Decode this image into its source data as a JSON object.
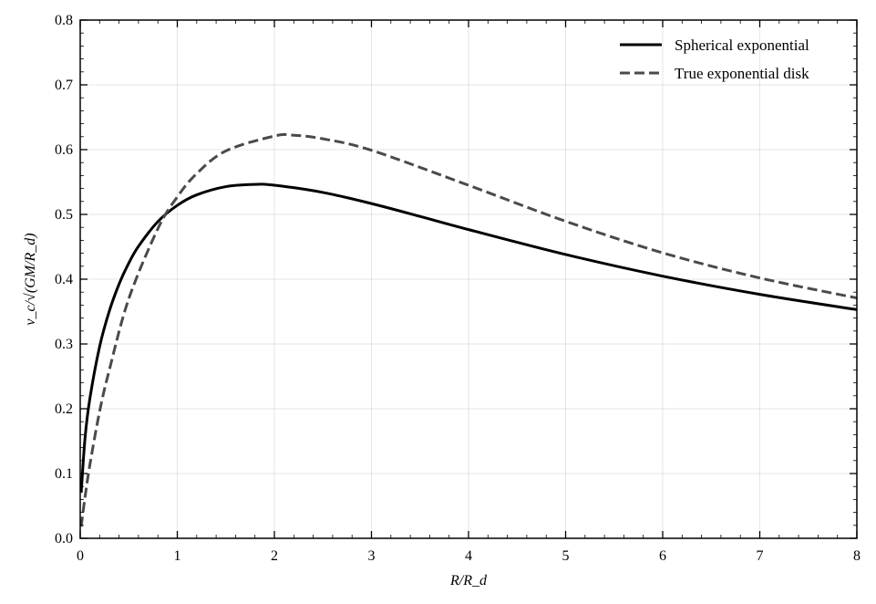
{
  "chart_data": {
    "type": "line",
    "title": "",
    "xlabel": "R/R_d",
    "ylabel": "v_c/√(GM/R_d)",
    "xlim": [
      0,
      8
    ],
    "ylim": [
      0,
      0.8
    ],
    "xticks": [
      "0",
      "1",
      "2",
      "3",
      "4",
      "5",
      "6",
      "7",
      "8"
    ],
    "yticks": [
      "0.0",
      "0.1",
      "0.2",
      "0.3",
      "0.4",
      "0.5",
      "0.6",
      "0.7",
      "0.8"
    ],
    "grid": true,
    "legend_placement": "top-right",
    "series": [
      {
        "name": "Spherical exponential",
        "style": "solid",
        "color": "#000000",
        "x": [
          0.01,
          0.05,
          0.1,
          0.2,
          0.3,
          0.4,
          0.5,
          0.6,
          0.8,
          1.0,
          1.2,
          1.5,
          1.8,
          2.0,
          2.5,
          3.0,
          3.5,
          4.0,
          5.0,
          6.0,
          7.0,
          8.0
        ],
        "y": [
          0.0705,
          0.1555,
          0.2163,
          0.296,
          0.3509,
          0.3923,
          0.4247,
          0.4507,
          0.4889,
          0.514,
          0.5302,
          0.5429,
          0.5463,
          0.545,
          0.5339,
          0.5167,
          0.4969,
          0.4766,
          0.4381,
          0.4047,
          0.3766,
          0.353
        ]
      },
      {
        "name": "True exponential disk",
        "style": "dashed",
        "color": "#4a4a4a",
        "x": [
          0.01,
          0.05,
          0.1,
          0.2,
          0.3,
          0.5,
          0.8,
          1.0,
          1.2,
          1.5,
          2.0,
          2.2,
          2.5,
          3.0,
          4.0,
          5.0,
          6.0,
          7.0,
          8.0
        ],
        "y": [
          0.018,
          0.064,
          0.114,
          0.196,
          0.26,
          0.3697,
          0.478,
          0.527,
          0.563,
          0.598,
          0.621,
          0.6222,
          0.6167,
          0.599,
          0.545,
          0.4894,
          0.4407,
          0.4019,
          0.371
        ]
      }
    ]
  }
}
